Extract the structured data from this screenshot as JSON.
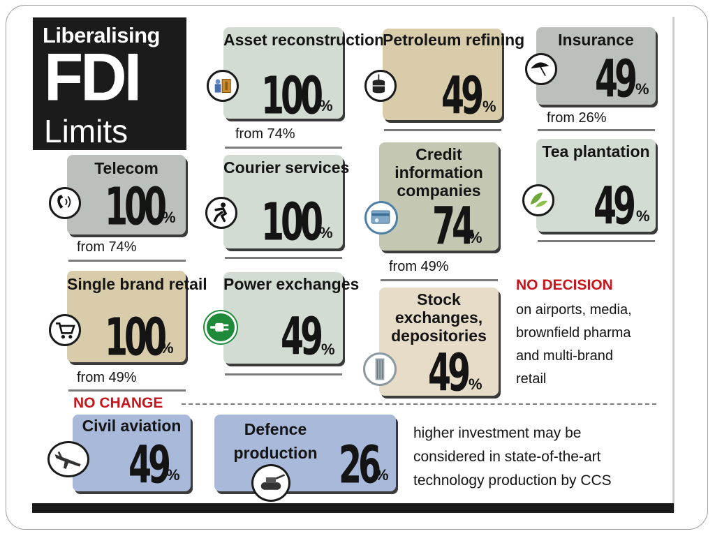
{
  "title": {
    "line1": "Liberalising",
    "line2": "FDI",
    "line3": "Limits"
  },
  "percent_sign": "%",
  "cards": {
    "asset_reconstruction": {
      "label": "Asset reconstruction",
      "value": "100",
      "note": "from 74%",
      "icon": "money-bags-icon"
    },
    "petroleum_refining": {
      "label": "Petroleum refining",
      "value": "49",
      "icon": "oil-barrel-icon"
    },
    "insurance": {
      "label": "Insurance",
      "value": "49",
      "note": "from 26%",
      "icon": "umbrella-icon"
    },
    "telecom": {
      "label": "Telecom",
      "value": "100",
      "note": "from 74%",
      "icon": "phone-icon"
    },
    "courier_services": {
      "label": "Courier services",
      "value": "100",
      "icon": "running-courier-icon"
    },
    "credit_information": {
      "label": "Credit information companies",
      "value": "74",
      "note": "from 49%",
      "icon": "credit-card-icon"
    },
    "tea_plantation": {
      "label": "Tea plantation",
      "value": "49",
      "icon": "tea-leaves-icon"
    },
    "single_brand_retail": {
      "label": "Single brand retail",
      "value": "100",
      "note": "from 49%",
      "icon": "shopping-cart-icon"
    },
    "power_exchanges": {
      "label": "Power exchanges",
      "value": "49",
      "icon": "power-plug-icon"
    },
    "stock_exchanges": {
      "label": "Stock exchanges, depositories",
      "value": "49",
      "icon": "building-icon"
    },
    "civil_aviation": {
      "label": "Civil aviation",
      "value": "49",
      "icon": "airplane-icon"
    },
    "defence_production": {
      "label": "Defence production",
      "value": "26",
      "icon": "tank-icon"
    }
  },
  "no_decision": {
    "heading": "NO DECISION",
    "lines": [
      "on airports, media,",
      "brownfield pharma",
      "and multi-brand",
      "retail"
    ]
  },
  "no_change": {
    "heading": "NO CHANGE"
  },
  "note": {
    "lines": [
      "higher investment may be",
      "considered in state-of-the-art",
      "technology production by CCS"
    ]
  },
  "colors": {
    "heading_red": "#c4161c",
    "title_block": "#1b1b1b",
    "card_grey": "#bcc0bd",
    "card_pale_green": "#d3dcd2",
    "card_tan": "#d8ccaa",
    "card_sage": "#c4c8b2",
    "card_cream": "#e6dcc7",
    "card_blue": "#a9b9da"
  }
}
